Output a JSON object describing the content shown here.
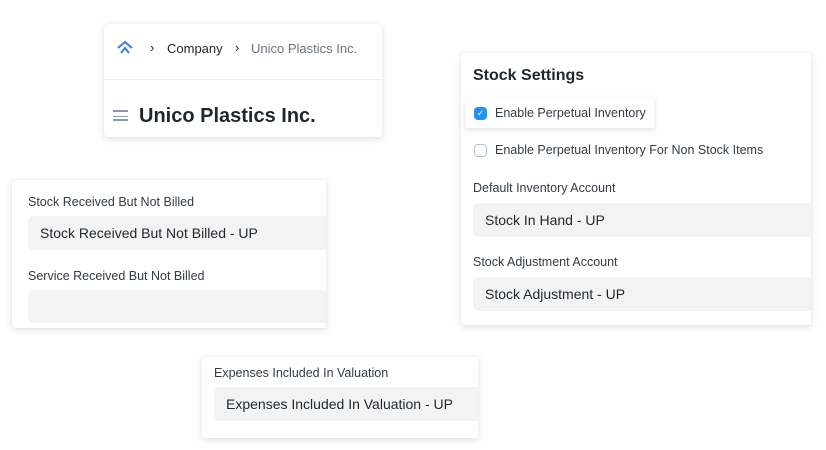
{
  "header": {
    "breadcrumbs": [
      "Company",
      "Unico Plastics Inc."
    ],
    "title": "Unico Plastics Inc."
  },
  "stock_settings": {
    "title": "Stock Settings",
    "enable_perpetual": {
      "label": "Enable Perpetual Inventory",
      "checked": true
    },
    "enable_non_stock": {
      "label": "Enable Perpetual Inventory For Non Stock Items",
      "checked": false
    },
    "default_inventory_label": "Default Inventory Account",
    "default_inventory_value": "Stock In Hand - UP",
    "adjustment_label": "Stock Adjustment Account",
    "adjustment_value": "Stock Adjustment - UP"
  },
  "received": {
    "srbnb_label": "Stock Received But Not Billed",
    "srbnb_value": "Stock Received But Not Billed - UP",
    "service_label": "Service Received But Not Billed",
    "service_value": ""
  },
  "expenses": {
    "label": "Expenses Included In Valuation",
    "value": "Expenses Included In Valuation - UP"
  },
  "colors": {
    "accent": "#2490ef",
    "logo": "#3b7dd8"
  }
}
